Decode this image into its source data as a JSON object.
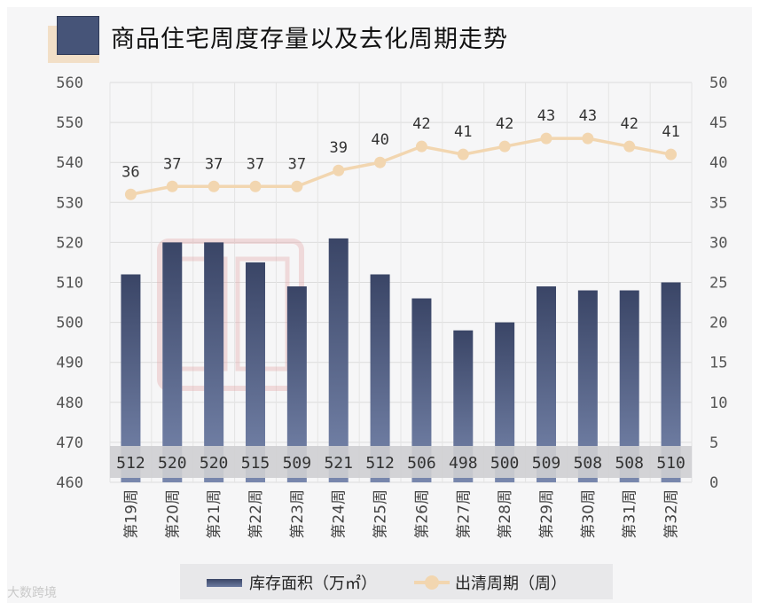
{
  "title": "商品住宅周度存量以及去化周期走势",
  "watermark_corner": "大数跨境",
  "colors": {
    "bar_top": "#3a4566",
    "bar_bottom": "#7887ad",
    "line": "#f2d6b0",
    "grid": "#dcdcdc",
    "axis_text": "#555555",
    "label_band": "#cfcfd2"
  },
  "chart_data": {
    "type": "bar+line",
    "title": "商品住宅周度存量以及去化周期走势",
    "categories": [
      "第19周",
      "第20周",
      "第21周",
      "第22周",
      "第23周",
      "第24周",
      "第25周",
      "第26周",
      "第27周",
      "第28周",
      "第29周",
      "第30周",
      "第31周",
      "第32周"
    ],
    "series": [
      {
        "name": "库存面积（万㎡）",
        "type": "bar",
        "axis": "left",
        "values": [
          512,
          520,
          520,
          515,
          509,
          521,
          512,
          506,
          498,
          500,
          509,
          508,
          508,
          510
        ]
      },
      {
        "name": "出清周期（周）",
        "type": "line",
        "axis": "right",
        "values": [
          36,
          37,
          37,
          37,
          37,
          39,
          40,
          42,
          41,
          42,
          43,
          43,
          42,
          41
        ]
      }
    ],
    "left_axis": {
      "min": 460,
      "max": 560,
      "step": 10
    },
    "right_axis": {
      "min": 0,
      "max": 50,
      "step": 5
    },
    "legend": [
      "库存面积（万㎡）",
      "出清周期（周）"
    ],
    "legend_position": "bottom"
  }
}
